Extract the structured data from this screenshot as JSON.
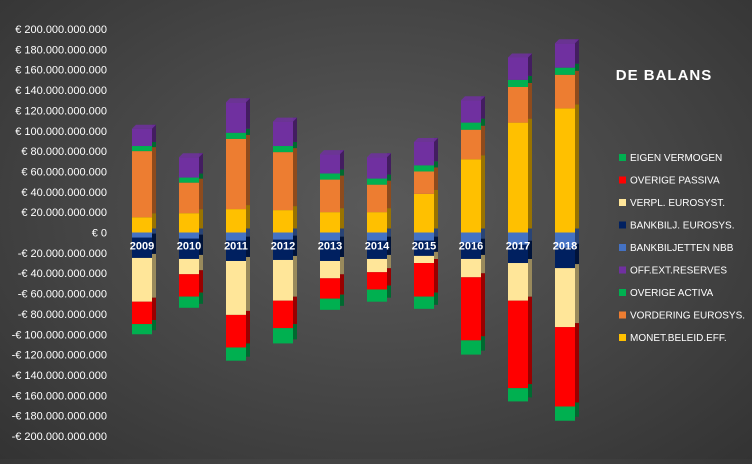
{
  "chart_data": {
    "type": "bar",
    "stacked": true,
    "title": "DE BALANS",
    "xlabel": "",
    "ylabel": "",
    "ylim": [
      -200000000000,
      200000000000
    ],
    "ytick_step": 20000000000,
    "yticks": [
      "€ 200.000.000.000",
      "€ 180.000.000.000",
      "€ 160.000.000.000",
      "€ 140.000.000.000",
      "€ 120.000.000.000",
      "€ 100.000.000.000",
      "€ 80.000.000.000",
      "€ 60.000.000.000",
      "€ 40.000.000.000",
      "€ 20.000.000.000",
      "€ 0",
      "-€ 20.000.000.000",
      "-€ 40.000.000.000",
      "-€ 60.000.000.000",
      "-€ 80.000.000.000",
      "-€ 100.000.000.000",
      "-€ 120.000.000.000",
      "-€ 140.000.000.000",
      "-€ 160.000.000.000",
      "-€ 180.000.000.000",
      "-€ 200.000.000.000"
    ],
    "categories": [
      "2009",
      "2010",
      "2011",
      "2012",
      "2013",
      "2014",
      "2015",
      "2016",
      "2017",
      "2018"
    ],
    "legend_position": "right",
    "grid": false,
    "series": [
      {
        "name": "MONET.BELEID.EFF.",
        "color": "#ffc000",
        "side": "assets",
        "values": [
          15000000000,
          19000000000,
          23000000000,
          22000000000,
          20000000000,
          20000000000,
          38000000000,
          72000000000,
          108000000000,
          122000000000
        ]
      },
      {
        "name": "VORDERING EUROSYS.",
        "color": "#ed7d31",
        "side": "assets",
        "values": [
          65000000000,
          30000000000,
          69000000000,
          57000000000,
          32000000000,
          27000000000,
          22000000000,
          29000000000,
          35000000000,
          33000000000
        ]
      },
      {
        "name": "OVERIGE ACTIVA",
        "color": "#00b050",
        "side": "assets",
        "values": [
          5000000000,
          5000000000,
          6000000000,
          6000000000,
          6000000000,
          6000000000,
          6000000000,
          7000000000,
          7000000000,
          7000000000
        ]
      },
      {
        "name": "OFF.EXT.RESERVES",
        "color": "#7030a0",
        "side": "assets",
        "values": [
          17000000000,
          20000000000,
          30000000000,
          24000000000,
          19000000000,
          21000000000,
          23000000000,
          22000000000,
          22000000000,
          24000000000
        ]
      },
      {
        "name": "BANKBILJETTEN NBB",
        "color": "#4472c4",
        "side": "liabilities",
        "values": [
          -5000000000,
          -6000000000,
          -8000000000,
          -7000000000,
          -8000000000,
          -8000000000,
          -8000000000,
          -10000000000,
          -12000000000,
          -15000000000
        ]
      },
      {
        "name": "BANKBILJ. EUROSYS.",
        "color": "#002060",
        "side": "liabilities",
        "values": [
          -20000000000,
          -20000000000,
          -20000000000,
          -20000000000,
          -20000000000,
          -18000000000,
          -15000000000,
          -16000000000,
          -18000000000,
          -20000000000
        ]
      },
      {
        "name": "VERPL. EUROSYST.",
        "color": "#ffe699",
        "side": "liabilities",
        "values": [
          -43000000000,
          -15000000000,
          -53000000000,
          -40000000000,
          -17000000000,
          -13000000000,
          -7000000000,
          -18000000000,
          -37000000000,
          -58000000000
        ]
      },
      {
        "name": "OVERIGE PASSIVA",
        "color": "#ff0000",
        "side": "liabilities",
        "values": [
          -22000000000,
          -22000000000,
          -32000000000,
          -27000000000,
          -20000000000,
          -17000000000,
          -33000000000,
          -62000000000,
          -86000000000,
          -78000000000
        ]
      },
      {
        "name": "EIGEN VERMOGEN",
        "color": "#00b050",
        "side": "liabilities",
        "values": [
          -10000000000,
          -11000000000,
          -13000000000,
          -15000000000,
          -11000000000,
          -12000000000,
          -12000000000,
          -14000000000,
          -13000000000,
          -14000000000
        ]
      }
    ],
    "legend": [
      {
        "name": "EIGEN VERMOGEN",
        "color": "#00b050"
      },
      {
        "name": "OVERIGE PASSIVA",
        "color": "#ff0000"
      },
      {
        "name": "VERPL. EUROSYST.",
        "color": "#ffe699"
      },
      {
        "name": "BANKBILJ. EUROSYS.",
        "color": "#002060"
      },
      {
        "name": "BANKBILJETTEN NBB",
        "color": "#4472c4"
      },
      {
        "name": "OFF.EXT.RESERVES",
        "color": "#7030a0"
      },
      {
        "name": "OVERIGE ACTIVA",
        "color": "#00b050"
      },
      {
        "name": "VORDERING EUROSYS.",
        "color": "#ed7d31"
      },
      {
        "name": "MONET.BELEID.EFF.",
        "color": "#ffc000"
      }
    ]
  }
}
